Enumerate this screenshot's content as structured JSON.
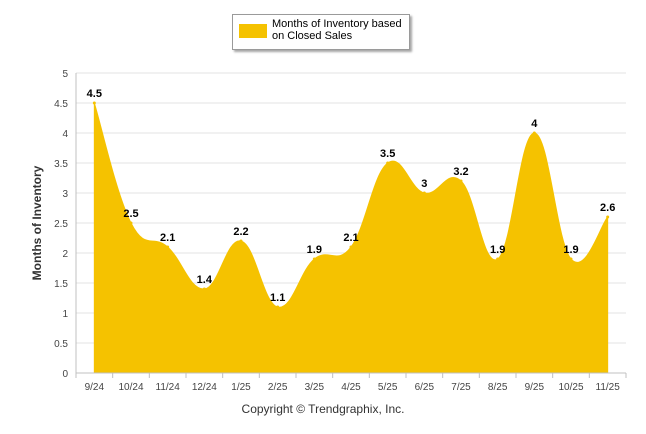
{
  "chart_data": {
    "type": "area",
    "title": "",
    "xlabel": "",
    "ylabel": "Months of Inventory",
    "categories": [
      "9/24",
      "10/24",
      "11/24",
      "12/24",
      "1/25",
      "2/25",
      "3/25",
      "4/25",
      "5/25",
      "6/25",
      "7/25",
      "8/25",
      "9/25",
      "10/25",
      "11/25"
    ],
    "series": [
      {
        "name": "Months of Inventory based on Closed Sales",
        "values": [
          4.5,
          2.5,
          2.1,
          1.4,
          2.2,
          1.1,
          1.9,
          2.1,
          3.5,
          3,
          3.2,
          1.9,
          4,
          1.9,
          2.6
        ],
        "labels": [
          "4.5",
          "2.5",
          "2.1",
          "1.4",
          "2.2",
          "1.1",
          "1.9",
          "2.1",
          "3.5",
          "3",
          "3.2",
          "1.9",
          "4",
          "1.9",
          "2.6"
        ],
        "color": "#f5c200"
      }
    ],
    "ylim": [
      0,
      5
    ],
    "yticks": [
      "0",
      "0.5",
      "1",
      "1.5",
      "2",
      "2.5",
      "3",
      "3.5",
      "4",
      "4.5",
      "5"
    ],
    "grid": true,
    "legend_position": "top-center"
  },
  "legend": {
    "line1": "Months of Inventory based",
    "line2": "on Closed Sales"
  },
  "copyright": "Copyright © Trendgraphix, Inc."
}
